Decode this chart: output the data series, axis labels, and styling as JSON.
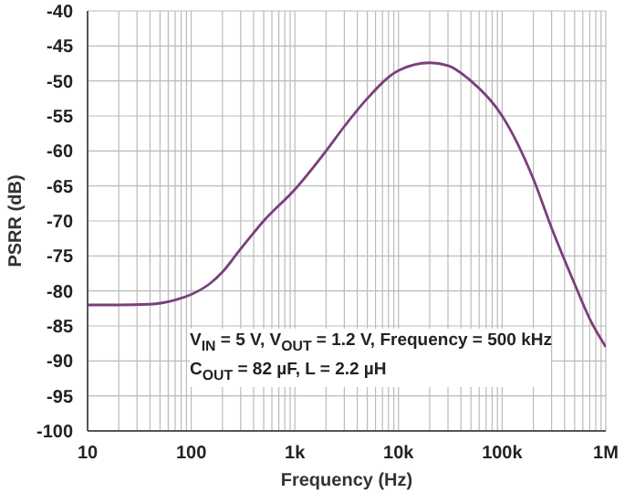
{
  "chart_data": {
    "type": "line",
    "xlabel": "Frequency (Hz)",
    "ylabel": "PSRR (dB)",
    "log": "x",
    "grid": true,
    "marker": "none",
    "line_style": "solid",
    "legend": false,
    "xlim": [
      10,
      1000000
    ],
    "ylim": [
      -100,
      -40
    ],
    "xticks": [
      {
        "value": 10,
        "label": "10"
      },
      {
        "value": 20,
        "label": null
      },
      {
        "value": 30,
        "label": null
      },
      {
        "value": 40,
        "label": null
      },
      {
        "value": 50,
        "label": null
      },
      {
        "value": 60,
        "label": null
      },
      {
        "value": 70,
        "label": null
      },
      {
        "value": 80,
        "label": null
      },
      {
        "value": 90,
        "label": null
      },
      {
        "value": 100,
        "label": "100"
      },
      {
        "value": 200,
        "label": null
      },
      {
        "value": 300,
        "label": null
      },
      {
        "value": 400,
        "label": null
      },
      {
        "value": 500,
        "label": null
      },
      {
        "value": 600,
        "label": null
      },
      {
        "value": 700,
        "label": null
      },
      {
        "value": 800,
        "label": null
      },
      {
        "value": 900,
        "label": null
      },
      {
        "value": 1000,
        "label": "1k"
      },
      {
        "value": 2000,
        "label": null
      },
      {
        "value": 3000,
        "label": null
      },
      {
        "value": 4000,
        "label": null
      },
      {
        "value": 5000,
        "label": null
      },
      {
        "value": 6000,
        "label": null
      },
      {
        "value": 7000,
        "label": null
      },
      {
        "value": 8000,
        "label": null
      },
      {
        "value": 9000,
        "label": null
      },
      {
        "value": 10000,
        "label": "10k"
      },
      {
        "value": 20000,
        "label": null
      },
      {
        "value": 30000,
        "label": null
      },
      {
        "value": 40000,
        "label": null
      },
      {
        "value": 50000,
        "label": null
      },
      {
        "value": 60000,
        "label": null
      },
      {
        "value": 70000,
        "label": null
      },
      {
        "value": 80000,
        "label": null
      },
      {
        "value": 90000,
        "label": null
      },
      {
        "value": 100000,
        "label": "100k"
      },
      {
        "value": 200000,
        "label": null
      },
      {
        "value": 300000,
        "label": null
      },
      {
        "value": 400000,
        "label": null
      },
      {
        "value": 500000,
        "label": null
      },
      {
        "value": 600000,
        "label": null
      },
      {
        "value": 700000,
        "label": null
      },
      {
        "value": 800000,
        "label": null
      },
      {
        "value": 900000,
        "label": null
      },
      {
        "value": 1000000,
        "label": "1M"
      }
    ],
    "yticks": [
      -100,
      -95,
      -90,
      -85,
      -80,
      -75,
      -70,
      -65,
      -60,
      -55,
      -50,
      -45,
      -40
    ],
    "x": [
      10,
      20,
      40,
      70,
      100,
      150,
      200,
      300,
      500,
      1000,
      2000,
      3000,
      5000,
      10000,
      20000,
      30000,
      50000,
      100000,
      200000,
      300000,
      500000,
      700000,
      1000000
    ],
    "series": [
      {
        "color": "#7b3f7a",
        "values": [
          -82,
          -82,
          -81.9,
          -81.3,
          -80.5,
          -79,
          -77.3,
          -74,
          -70,
          -65.5,
          -60,
          -56.5,
          -52.5,
          -48.5,
          -47.4,
          -47.8,
          -50,
          -55,
          -64,
          -71,
          -79,
          -84,
          -88
        ]
      }
    ],
    "annotations": [
      "V$_{IN}$ = 5 V, V$_{OUT}$ = 1.2 V, Frequency = 500 kHz",
      "C$_{OUT}$ = 82 µF, L = 2.2 µH"
    ]
  }
}
